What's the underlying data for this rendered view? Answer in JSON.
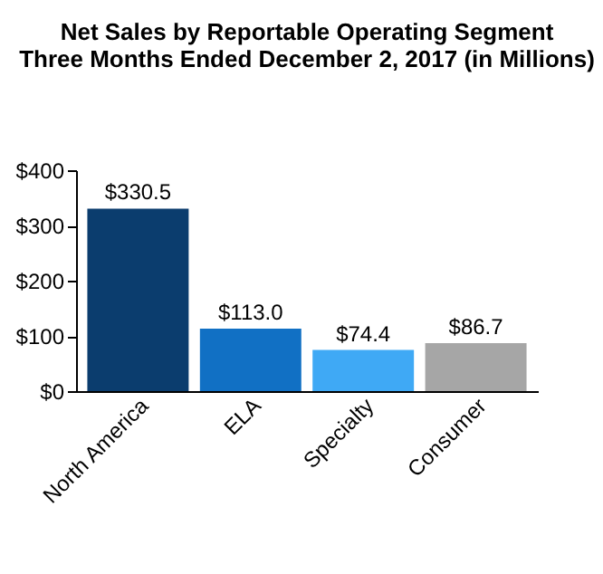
{
  "chart_data": {
    "type": "bar",
    "title": [
      "Net Sales by Reportable Operating Segment",
      "Three Months Ended December 2, 2017 (in Millions)"
    ],
    "categories": [
      "North America",
      "ELA",
      "Specialty",
      "Consumer"
    ],
    "values": [
      330.5,
      113.0,
      74.4,
      86.7
    ],
    "colors": [
      "#0b3d6e",
      "#1170c4",
      "#3fa9f5",
      "#a6a6a6"
    ],
    "value_labels": [
      "$330.5",
      "$113.0",
      "$74.4",
      "$86.7"
    ],
    "ylim": [
      0,
      400
    ],
    "yticks": [
      {
        "value": 0,
        "label": "$0"
      },
      {
        "value": 100,
        "label": "$100"
      },
      {
        "value": 200,
        "label": "$200"
      },
      {
        "value": 300,
        "label": "$300"
      },
      {
        "value": 400,
        "label": "$400"
      }
    ],
    "grid": false
  }
}
